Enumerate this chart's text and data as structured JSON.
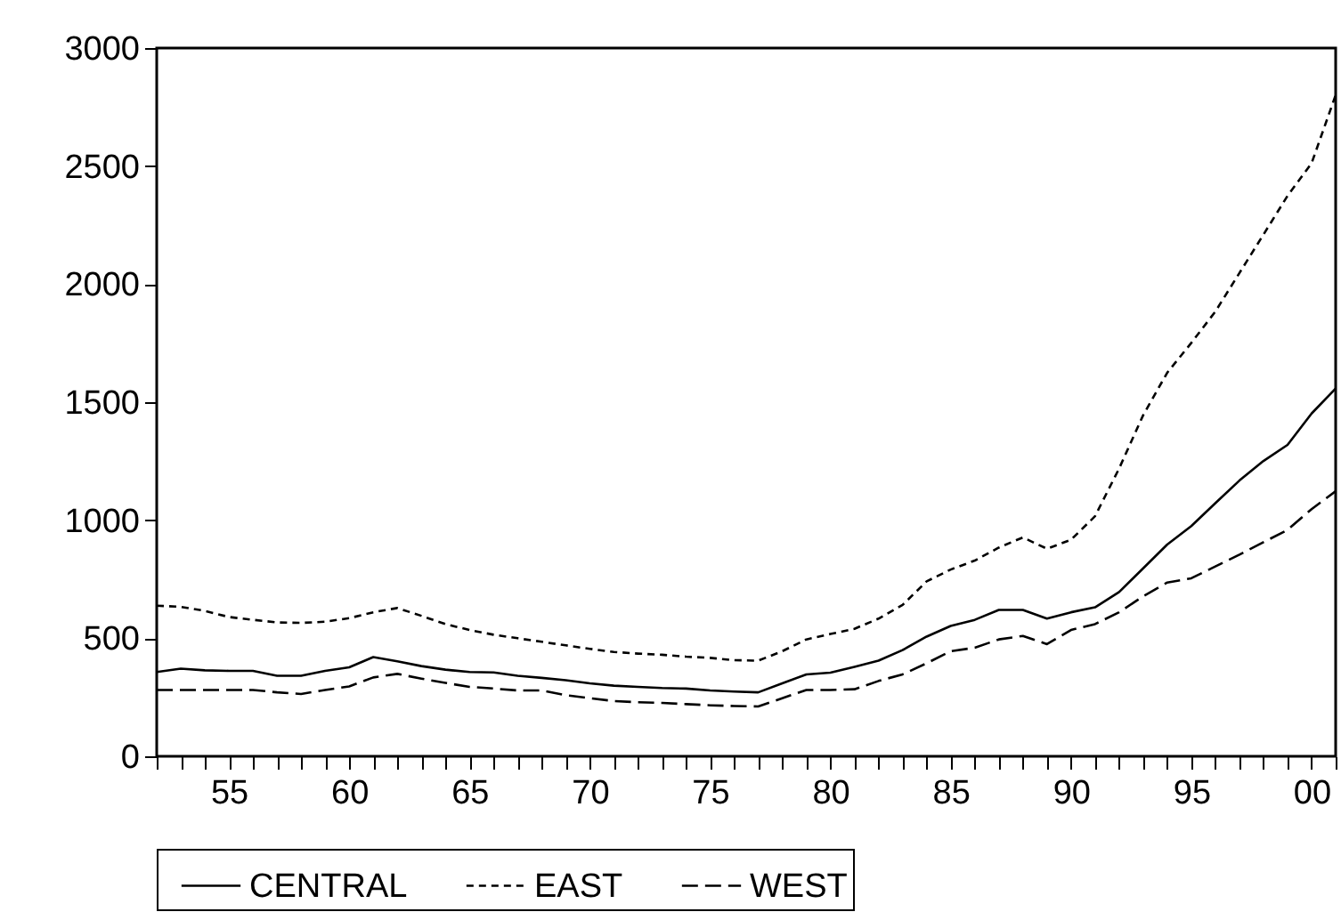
{
  "chart_data": {
    "type": "line",
    "x": [
      1952,
      1953,
      1954,
      1955,
      1956,
      1957,
      1958,
      1959,
      1960,
      1961,
      1962,
      1963,
      1964,
      1965,
      1966,
      1967,
      1968,
      1969,
      1970,
      1971,
      1972,
      1973,
      1974,
      1975,
      1976,
      1977,
      1978,
      1979,
      1980,
      1981,
      1982,
      1983,
      1984,
      1985,
      1986,
      1987,
      1988,
      1989,
      1990,
      1991,
      1992,
      1993,
      1994,
      1995,
      1996,
      1997,
      1998,
      1999,
      2000,
      2001
    ],
    "series": [
      {
        "name": "CENTRAL",
        "color": "#000000",
        "line_style": "solid",
        "values": [
          357,
          371,
          364,
          362,
          362,
          341,
          341,
          362,
          377,
          420,
          402,
          382,
          367,
          357,
          355,
          341,
          332,
          322,
          309,
          299,
          294,
          289,
          287,
          279,
          274,
          271,
          309,
          347,
          354,
          379,
          405,
          450,
          507,
          552,
          578,
          620,
          620,
          583,
          610,
          631,
          696,
          796,
          897,
          975,
          1072,
          1168,
          1251,
          1319,
          1452,
          1558
        ]
      },
      {
        "name": "EAST",
        "color": "#000000",
        "line_style": "dotted",
        "values": [
          638,
          633,
          616,
          590,
          578,
          567,
          565,
          570,
          585,
          610,
          628,
          595,
          560,
          535,
          515,
          500,
          485,
          470,
          455,
          442,
          435,
          430,
          422,
          417,
          407,
          405,
          445,
          495,
          518,
          540,
          583,
          641,
          741,
          791,
          829,
          884,
          927,
          879,
          917,
          1017,
          1219,
          1445,
          1625,
          1751,
          1884,
          2047,
          2210,
          2374,
          2512,
          2801
        ]
      },
      {
        "name": "WEST",
        "color": "#000000",
        "line_style": "dashed",
        "values": [
          281,
          281,
          281,
          281,
          281,
          271,
          264,
          281,
          296,
          334,
          349,
          329,
          311,
          294,
          287,
          279,
          279,
          259,
          246,
          234,
          229,
          226,
          221,
          216,
          213,
          211,
          246,
          281,
          281,
          284,
          319,
          347,
          394,
          445,
          460,
          495,
          510,
          475,
          535,
          560,
          610,
          678,
          736,
          754,
          804,
          854,
          907,
          959,
          1047,
          1123
        ]
      }
    ],
    "xlim": [
      1952,
      2001
    ],
    "xticks": [
      {
        "value": 1952,
        "label": null
      },
      {
        "value": 1953,
        "label": null
      },
      {
        "value": 1954,
        "label": null
      },
      {
        "value": 1955,
        "label": "55"
      },
      {
        "value": 1956,
        "label": null
      },
      {
        "value": 1957,
        "label": null
      },
      {
        "value": 1958,
        "label": null
      },
      {
        "value": 1959,
        "label": null
      },
      {
        "value": 1960,
        "label": "60"
      },
      {
        "value": 1961,
        "label": null
      },
      {
        "value": 1962,
        "label": null
      },
      {
        "value": 1963,
        "label": null
      },
      {
        "value": 1964,
        "label": null
      },
      {
        "value": 1965,
        "label": "65"
      },
      {
        "value": 1966,
        "label": null
      },
      {
        "value": 1967,
        "label": null
      },
      {
        "value": 1968,
        "label": null
      },
      {
        "value": 1969,
        "label": null
      },
      {
        "value": 1970,
        "label": "70"
      },
      {
        "value": 1971,
        "label": null
      },
      {
        "value": 1972,
        "label": null
      },
      {
        "value": 1973,
        "label": null
      },
      {
        "value": 1974,
        "label": null
      },
      {
        "value": 1975,
        "label": "75"
      },
      {
        "value": 1976,
        "label": null
      },
      {
        "value": 1977,
        "label": null
      },
      {
        "value": 1978,
        "label": null
      },
      {
        "value": 1979,
        "label": null
      },
      {
        "value": 1980,
        "label": "80"
      },
      {
        "value": 1981,
        "label": null
      },
      {
        "value": 1982,
        "label": null
      },
      {
        "value": 1983,
        "label": null
      },
      {
        "value": 1984,
        "label": null
      },
      {
        "value": 1985,
        "label": "85"
      },
      {
        "value": 1986,
        "label": null
      },
      {
        "value": 1987,
        "label": null
      },
      {
        "value": 1988,
        "label": null
      },
      {
        "value": 1989,
        "label": null
      },
      {
        "value": 1990,
        "label": "90"
      },
      {
        "value": 1991,
        "label": null
      },
      {
        "value": 1992,
        "label": null
      },
      {
        "value": 1993,
        "label": null
      },
      {
        "value": 1994,
        "label": null
      },
      {
        "value": 1995,
        "label": "95"
      },
      {
        "value": 1996,
        "label": null
      },
      {
        "value": 1997,
        "label": null
      },
      {
        "value": 1998,
        "label": null
      },
      {
        "value": 1999,
        "label": null
      },
      {
        "value": 2000,
        "label": "00"
      },
      {
        "value": 2001,
        "label": null
      }
    ],
    "ylim": [
      0,
      3000
    ],
    "yticks": [
      0,
      500,
      1000,
      1500,
      2000,
      2500,
      3000
    ],
    "grid": false,
    "legend": "bottom"
  }
}
